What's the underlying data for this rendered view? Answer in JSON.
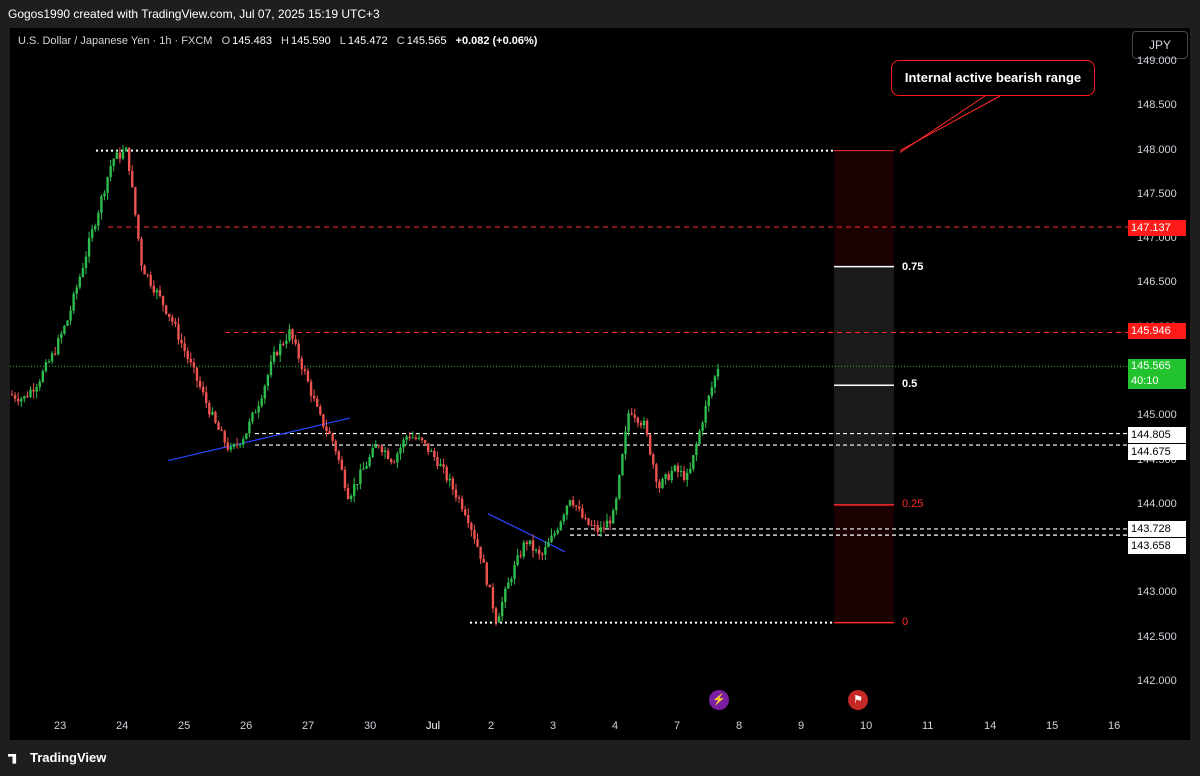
{
  "header": {
    "attribution": "Gogos1990 created with TradingView.com, Jul 07, 2025 15:19 UTC+3"
  },
  "legend": {
    "symbol": "U.S. Dollar / Japanese Yen · 1h · FXCM",
    "open_label": "O",
    "open": "145.483",
    "high_label": "H",
    "high": "145.590",
    "low_label": "L",
    "low": "145.472",
    "close_label": "C",
    "close": "145.565",
    "change": "+0.082 (+0.06%)"
  },
  "currency_button": "JPY",
  "annotation": "Internal active bearish range",
  "price_axis": {
    "ticks": [
      "149.000",
      "148.500",
      "148.000",
      "147.500",
      "147.000",
      "146.500",
      "146.000",
      "145.500",
      "145.000",
      "144.500",
      "144.000",
      "143.500",
      "143.000",
      "142.500",
      "142.000"
    ]
  },
  "price_tags": {
    "red_high": "147.137",
    "red_mid": "145.946",
    "current_price": "145.565",
    "countdown": "40:10",
    "white1": "144.805",
    "white2": "144.675",
    "white3": "143.728",
    "white4": "143.658"
  },
  "fib_levels": {
    "l075": "0.75",
    "l05": "0.5",
    "l025": "0.25",
    "l0": "0"
  },
  "time_axis": {
    "labels": [
      "23",
      "24",
      "25",
      "26",
      "27",
      "30",
      "Jul",
      "2",
      "3",
      "4",
      "7",
      "8",
      "9",
      "10",
      "11",
      "14",
      "15",
      "16"
    ]
  },
  "branding": "TradingView",
  "colors": {
    "up": "#2ebd4c",
    "down": "#ef5350",
    "red_line": "#ff2a2a",
    "current_price_bg": "#22c32e",
    "fib_zone": "#1a1a1a",
    "fib_red_zone": "#1a0000"
  },
  "chart_data": {
    "type": "candlestick",
    "title": "U.S. Dollar / Japanese Yen · 1h · FXCM",
    "ylim": [
      142.0,
      149.0
    ],
    "x_labels": [
      "23",
      "24",
      "25",
      "26",
      "27",
      "30",
      "Jul",
      "2",
      "3",
      "4",
      "7",
      "8",
      "9",
      "10",
      "11",
      "14",
      "15",
      "16"
    ],
    "last": {
      "open": 145.483,
      "high": 145.59,
      "low": 145.472,
      "close": 145.565
    },
    "price_path": [
      [
        145.25,
        145.2,
        145.4,
        145.7,
        146.1,
        146.7,
        147.3,
        147.9,
        148.0
      ],
      [
        146.7,
        146.4,
        146.1,
        145.7,
        145.3,
        144.9,
        144.6,
        144.8,
        145.2,
        145.7,
        145.95
      ],
      [
        145.5,
        145.0,
        144.7,
        144.1,
        144.4,
        144.7,
        144.5,
        144.8,
        144.7,
        144.5
      ],
      [
        144.2,
        143.9,
        143.4,
        142.7,
        143.2,
        143.6,
        143.4,
        143.7,
        144.1,
        143.8,
        143.7,
        143.9
      ],
      [
        145.1,
        144.9,
        144.2,
        144.4,
        144.3,
        145.0,
        145.56
      ]
    ]
  }
}
